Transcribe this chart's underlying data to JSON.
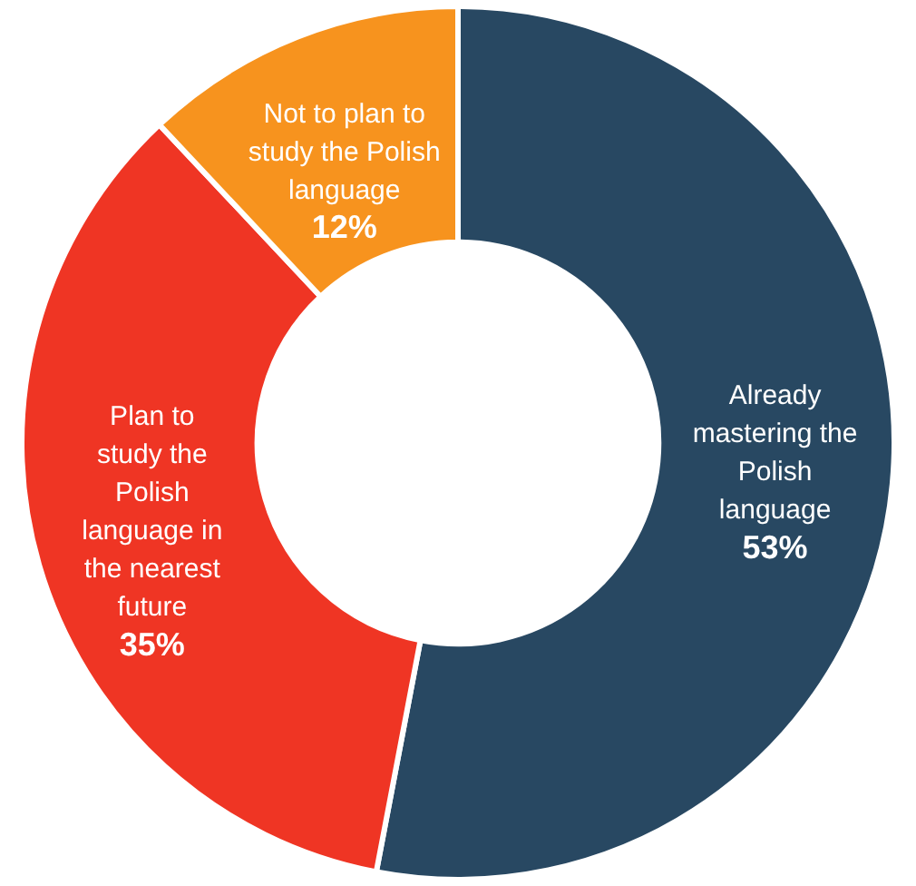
{
  "chart_data": {
    "type": "donut",
    "categories": [
      "Already mastering the Polish language",
      "Plan to study the Polish language in the nearest future",
      "Not to plan to study the Polish language"
    ],
    "values": [
      53,
      35,
      12
    ],
    "colors": [
      "#284862",
      "#ef3524",
      "#f7931e"
    ],
    "value_labels": [
      "53%",
      "35%",
      "12%"
    ],
    "legend": false
  }
}
